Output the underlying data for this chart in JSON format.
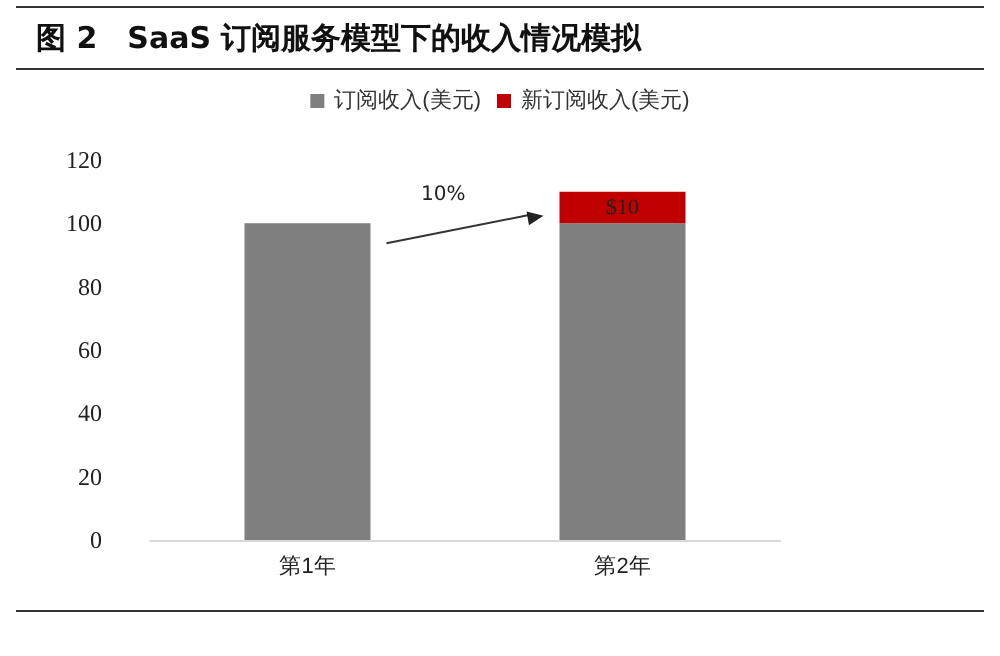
{
  "chart_data": {
    "type": "bar",
    "title": "图 2　SaaS 订阅服务模型下的收入情况模拟",
    "categories": [
      "第1年",
      "第2年"
    ],
    "series": [
      {
        "name": "订阅收入(美元)",
        "color": "#7f7f7f",
        "values": [
          100,
          100
        ]
      },
      {
        "name": "新订阅收入(美元)",
        "color": "#c00000",
        "values": [
          0,
          10
        ],
        "value_labels": [
          null,
          "$10"
        ]
      }
    ],
    "stacked": true,
    "ylim": [
      0,
      120
    ],
    "yticks": [
      0,
      20,
      40,
      60,
      80,
      100,
      120
    ],
    "grid": false,
    "legend": "top",
    "annotations": [
      "10%"
    ]
  }
}
